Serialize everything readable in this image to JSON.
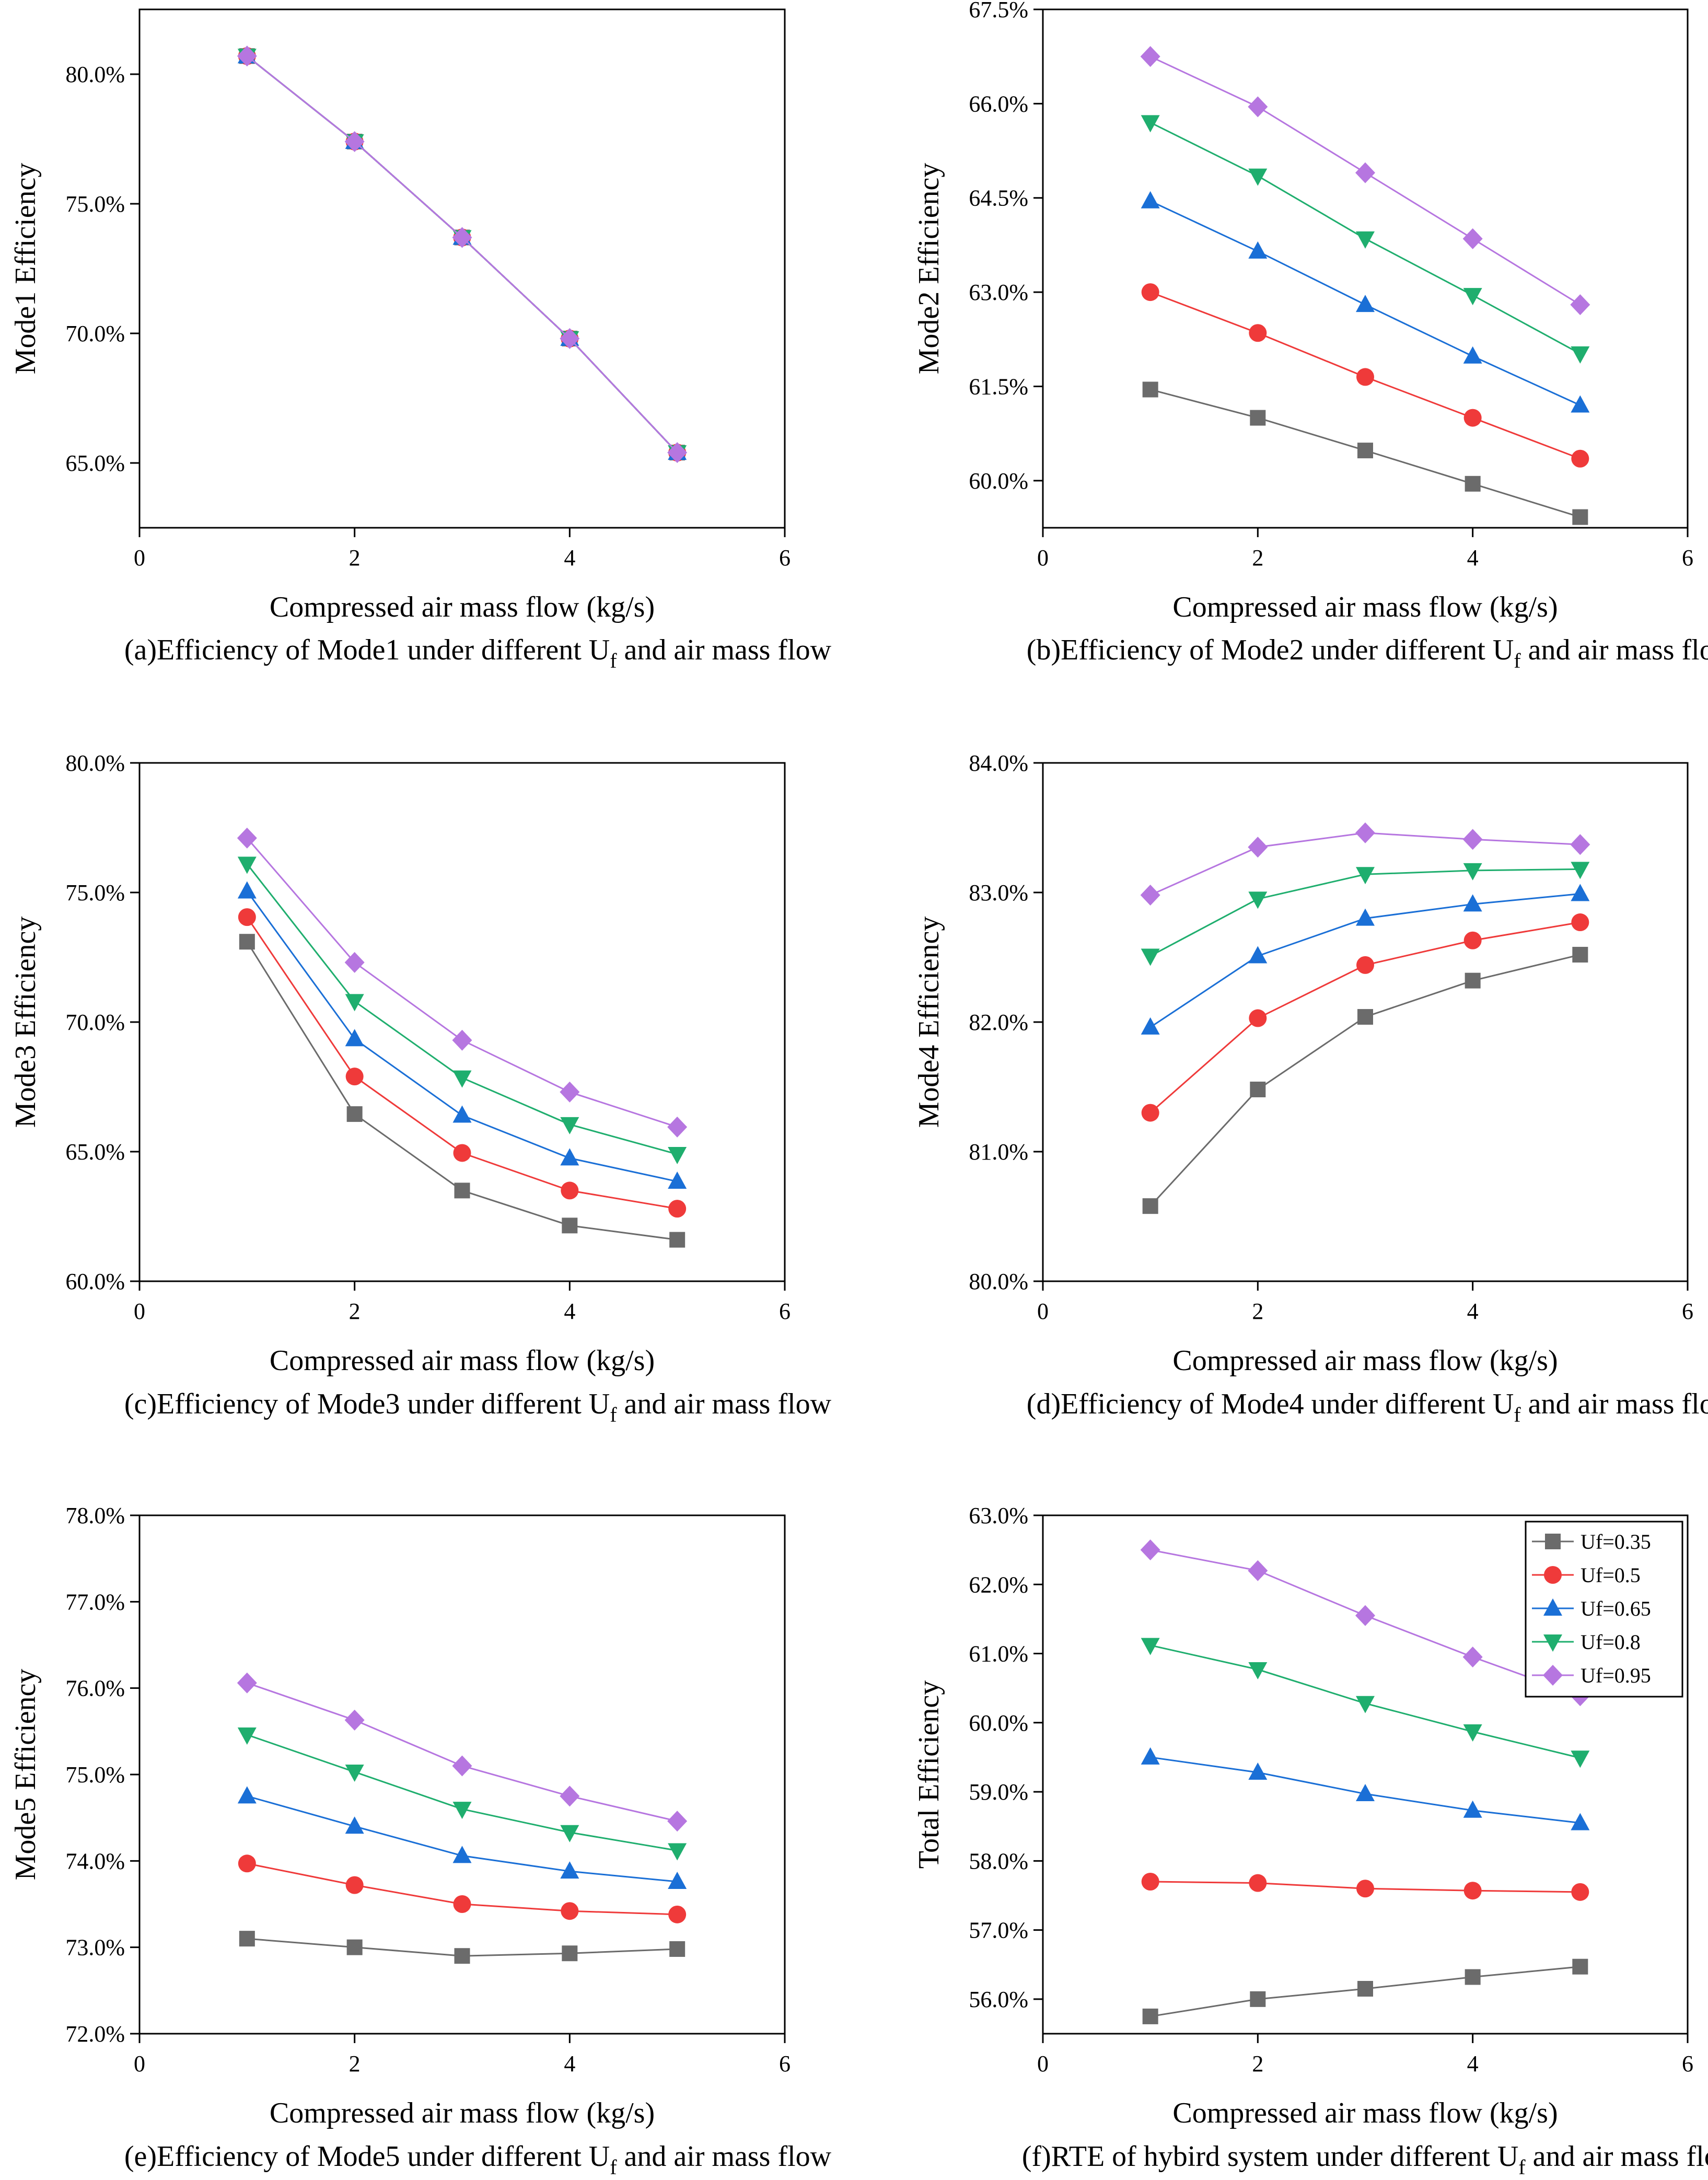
{
  "figure": {
    "legend": [
      {
        "name": "Uf=0.35",
        "color": "#6b6b6b",
        "marker": "square"
      },
      {
        "name": "Uf=0.5",
        "color": "#ef3a3a",
        "marker": "circle"
      },
      {
        "name": "Uf=0.65",
        "color": "#1a6fd6",
        "marker": "triangle-up"
      },
      {
        "name": "Uf=0.8",
        "color": "#1fae6e",
        "marker": "triangle-down"
      },
      {
        "name": "Uf=0.95",
        "color": "#b676e0",
        "marker": "diamond"
      }
    ]
  },
  "chart_data": [
    {
      "id": "a",
      "type": "line",
      "caption_pre": "(a)Efficiency of Mode1 under different U",
      "caption_sub": "f",
      "caption_post": " and air mass flow",
      "xlabel": "Compressed air mass flow (kg/s)",
      "ylabel": "Mode1 Efficiency",
      "xlim": [
        0,
        6
      ],
      "xticks": [
        0,
        2,
        4,
        6
      ],
      "ylim": [
        62.5,
        82.5
      ],
      "yticks": [
        65,
        70,
        75,
        80
      ],
      "ytick_labels": [
        "65.0%",
        "70.0%",
        "75.0%",
        "80.0%"
      ],
      "x": [
        1,
        2,
        3,
        4,
        5
      ],
      "series": [
        {
          "name": "Uf=0.35",
          "values": [
            80.7,
            77.4,
            73.7,
            69.8,
            65.4
          ]
        },
        {
          "name": "Uf=0.5",
          "values": [
            80.7,
            77.4,
            73.7,
            69.8,
            65.4
          ]
        },
        {
          "name": "Uf=0.65",
          "values": [
            80.7,
            77.4,
            73.7,
            69.8,
            65.4
          ]
        },
        {
          "name": "Uf=0.8",
          "values": [
            80.7,
            77.4,
            73.7,
            69.8,
            65.4
          ]
        },
        {
          "name": "Uf=0.95",
          "values": [
            80.7,
            77.4,
            73.7,
            69.8,
            65.4
          ]
        }
      ]
    },
    {
      "id": "b",
      "type": "line",
      "caption_pre": "(b)Efficiency of Mode2 under different U",
      "caption_sub": "f",
      "caption_post": " and air mass flow",
      "xlabel": "Compressed air mass flow (kg/s)",
      "ylabel": "Mode2 Efficiency",
      "xlim": [
        0,
        6
      ],
      "xticks": [
        0,
        2,
        4,
        6
      ],
      "ylim": [
        59.25,
        67.5
      ],
      "yticks": [
        60,
        61.5,
        63,
        64.5,
        66,
        67.5
      ],
      "ytick_labels": [
        "60.0%",
        "61.5%",
        "63.0%",
        "64.5%",
        "66.0%",
        "67.5%"
      ],
      "x": [
        1,
        2,
        3,
        4,
        5
      ],
      "series": [
        {
          "name": "Uf=0.35",
          "values": [
            61.45,
            61.0,
            60.48,
            59.95,
            59.42
          ]
        },
        {
          "name": "Uf=0.5",
          "values": [
            63.0,
            62.35,
            61.65,
            61.0,
            60.35
          ]
        },
        {
          "name": "Uf=0.65",
          "values": [
            64.45,
            63.65,
            62.8,
            61.98,
            61.2
          ]
        },
        {
          "name": "Uf=0.8",
          "values": [
            65.7,
            64.85,
            63.85,
            62.95,
            62.02
          ]
        },
        {
          "name": "Uf=0.95",
          "values": [
            66.75,
            65.95,
            64.9,
            63.85,
            62.8
          ]
        }
      ]
    },
    {
      "id": "c",
      "type": "line",
      "caption_pre": "(c)Efficiency of Mode3 under different U",
      "caption_sub": "f",
      "caption_post": " and air mass flow",
      "xlabel": "Compressed air mass flow (kg/s)",
      "ylabel": "Mode3 Efficiency",
      "xlim": [
        0,
        6
      ],
      "xticks": [
        0,
        2,
        4,
        6
      ],
      "ylim": [
        60,
        80
      ],
      "yticks": [
        60,
        65,
        70,
        75,
        80
      ],
      "ytick_labels": [
        "60.0%",
        "65.0%",
        "70.0%",
        "75.0%",
        "80.0%"
      ],
      "x": [
        1,
        2,
        3,
        4,
        5
      ],
      "series": [
        {
          "name": "Uf=0.35",
          "values": [
            73.1,
            66.45,
            63.5,
            62.15,
            61.6
          ]
        },
        {
          "name": "Uf=0.5",
          "values": [
            74.05,
            67.9,
            64.95,
            63.5,
            62.8
          ]
        },
        {
          "name": "Uf=0.65",
          "values": [
            75.05,
            69.35,
            66.4,
            64.75,
            63.85
          ]
        },
        {
          "name": "Uf=0.8",
          "values": [
            76.1,
            70.8,
            67.85,
            66.05,
            64.9
          ]
        },
        {
          "name": "Uf=0.95",
          "values": [
            77.1,
            72.3,
            69.3,
            67.3,
            65.95
          ]
        }
      ]
    },
    {
      "id": "d",
      "type": "line",
      "caption_pre": "(d)Efficiency of Mode4 under different U",
      "caption_sub": "f",
      "caption_post": " and air mass flow",
      "xlabel": "Compressed air mass flow (kg/s)",
      "ylabel": "Mode4 Efficiency",
      "xlim": [
        0,
        6
      ],
      "xticks": [
        0,
        2,
        4,
        6
      ],
      "ylim": [
        80,
        84
      ],
      "yticks": [
        80,
        81,
        82,
        83,
        84
      ],
      "ytick_labels": [
        "80.0%",
        "81.0%",
        "82.0%",
        "83.0%",
        "84.0%"
      ],
      "x": [
        1,
        2,
        3,
        4,
        5
      ],
      "series": [
        {
          "name": "Uf=0.35",
          "values": [
            80.58,
            81.48,
            82.04,
            82.32,
            82.52
          ]
        },
        {
          "name": "Uf=0.5",
          "values": [
            81.3,
            82.03,
            82.44,
            82.63,
            82.77
          ]
        },
        {
          "name": "Uf=0.65",
          "values": [
            81.96,
            82.51,
            82.8,
            82.91,
            82.99
          ]
        },
        {
          "name": "Uf=0.8",
          "values": [
            82.51,
            82.95,
            83.14,
            83.17,
            83.18
          ]
        },
        {
          "name": "Uf=0.95",
          "values": [
            82.98,
            83.35,
            83.46,
            83.41,
            83.37
          ]
        }
      ]
    },
    {
      "id": "e",
      "type": "line",
      "caption_pre": "(e)Efficiency of Mode5 under different U",
      "caption_sub": "f",
      "caption_post": " and air mass flow",
      "xlabel": "Compressed air mass flow (kg/s)",
      "ylabel": "Mode5 Efficiency",
      "xlim": [
        0,
        6
      ],
      "xticks": [
        0,
        2,
        4,
        6
      ],
      "ylim": [
        72,
        78
      ],
      "yticks": [
        72,
        73,
        74,
        75,
        76,
        77,
        78
      ],
      "ytick_labels": [
        "72.0%",
        "73.0%",
        "74.0%",
        "75.0%",
        "76.0%",
        "77.0%",
        "78.0%"
      ],
      "x": [
        1,
        2,
        3,
        4,
        5
      ],
      "series": [
        {
          "name": "Uf=0.35",
          "values": [
            73.1,
            73.0,
            72.9,
            72.93,
            72.98
          ]
        },
        {
          "name": "Uf=0.5",
          "values": [
            73.97,
            73.72,
            73.5,
            73.42,
            73.38
          ]
        },
        {
          "name": "Uf=0.65",
          "values": [
            74.75,
            74.4,
            74.06,
            73.88,
            73.76
          ]
        },
        {
          "name": "Uf=0.8",
          "values": [
            75.46,
            75.03,
            74.6,
            74.33,
            74.12
          ]
        },
        {
          "name": "Uf=0.95",
          "values": [
            76.06,
            75.63,
            75.1,
            74.75,
            74.46
          ]
        }
      ]
    },
    {
      "id": "f",
      "type": "line",
      "caption_pre": "(f)RTE of hybird system under different U",
      "caption_sub": "f",
      "caption_post": " and air mass flow",
      "xlabel": "Compressed air mass flow (kg/s)",
      "ylabel": "Total Efficiency",
      "xlim": [
        0,
        6
      ],
      "xticks": [
        0,
        2,
        4,
        6
      ],
      "ylim": [
        55.5,
        63
      ],
      "yticks": [
        56,
        57,
        58,
        59,
        60,
        61,
        62,
        63
      ],
      "ytick_labels": [
        "56.0%",
        "57.0%",
        "58.0%",
        "59.0%",
        "60.0%",
        "61.0%",
        "62.0%",
        "63.0%"
      ],
      "legend": "top-right",
      "x": [
        1,
        2,
        3,
        4,
        5
      ],
      "series": [
        {
          "name": "Uf=0.35",
          "values": [
            55.75,
            56.0,
            56.15,
            56.32,
            56.47
          ]
        },
        {
          "name": "Uf=0.5",
          "values": [
            57.7,
            57.68,
            57.6,
            57.57,
            57.55
          ]
        },
        {
          "name": "Uf=0.65",
          "values": [
            59.5,
            59.28,
            58.97,
            58.73,
            58.55
          ]
        },
        {
          "name": "Uf=0.8",
          "values": [
            61.12,
            60.77,
            60.28,
            59.87,
            59.49
          ]
        },
        {
          "name": "Uf=0.95",
          "values": [
            62.5,
            62.2,
            61.55,
            60.95,
            60.39
          ]
        }
      ]
    }
  ]
}
